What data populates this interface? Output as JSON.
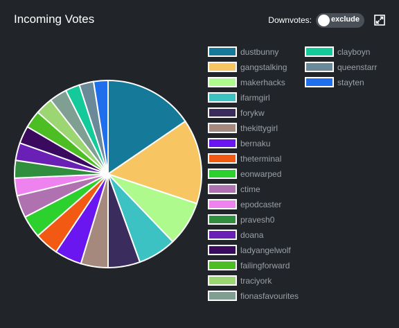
{
  "header": {
    "title": "Incoming Votes",
    "toggle_label": "Downvotes:",
    "toggle_value": "exclude"
  },
  "icons": {
    "expand": "expand-icon"
  },
  "chart_data": {
    "type": "pie",
    "title": "Incoming Votes",
    "legend_position": "right",
    "slices": [
      {
        "label": "dustbunny",
        "value": 56,
        "color": "#157a99"
      },
      {
        "label": "gangstalking",
        "value": 53,
        "color": "#f7c662"
      },
      {
        "label": "makerhacks",
        "value": 28,
        "color": "#aefa8c"
      },
      {
        "label": "ifarmgirl",
        "value": 24,
        "color": "#3cc2c2"
      },
      {
        "label": "forykw",
        "value": 20,
        "color": "#3a2d5e"
      },
      {
        "label": "thekittygirl",
        "value": 17,
        "color": "#a5897c"
      },
      {
        "label": "bernaku",
        "value": 17,
        "color": "#6a16f0"
      },
      {
        "label": "theterminal",
        "value": 15,
        "color": "#f25a14"
      },
      {
        "label": "eonwarped",
        "value": 14,
        "color": "#2dd12d"
      },
      {
        "label": "ctime",
        "value": 14,
        "color": "#b071b0"
      },
      {
        "label": "epodcaster",
        "value": 11,
        "color": "#ee82ee"
      },
      {
        "label": "pravesh0",
        "value": 11,
        "color": "#2f8f3f"
      },
      {
        "label": "doana",
        "value": 11,
        "color": "#6a1fb5"
      },
      {
        "label": "ladyangelwolf",
        "value": 11,
        "color": "#3a0a5e"
      },
      {
        "label": "failingforward",
        "value": 11,
        "color": "#4cbe23"
      },
      {
        "label": "traciyork",
        "value": 11,
        "color": "#9cd673"
      },
      {
        "label": "fionasfavourites",
        "value": 11,
        "color": "#7f9f93"
      },
      {
        "label": "clayboyn",
        "value": 9,
        "color": "#14c99a"
      },
      {
        "label": "queenstarr",
        "value": 9,
        "color": "#6b8a99"
      },
      {
        "label": "stayten",
        "value": 9,
        "color": "#1f6fed"
      }
    ]
  }
}
